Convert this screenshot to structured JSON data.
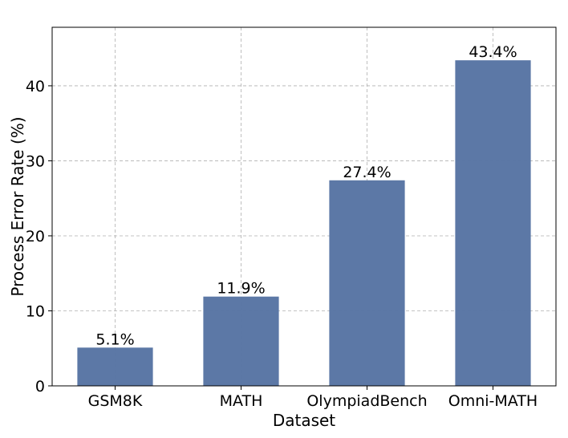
{
  "chart_data": {
    "type": "bar",
    "title": "",
    "xlabel": "Dataset",
    "ylabel": "Process Error Rate (%)",
    "categories": [
      "GSM8K",
      "MATH",
      "OlympiadBench",
      "Omni-MATH"
    ],
    "values": [
      5.1,
      11.9,
      27.4,
      43.4
    ],
    "value_labels": [
      "5.1%",
      "11.9%",
      "27.4%",
      "43.4%"
    ],
    "ylim": [
      0,
      47.8
    ],
    "yticks": [
      0,
      10,
      20,
      30,
      40
    ],
    "ytick_labels": [
      "0",
      "10",
      "20",
      "30",
      "40"
    ],
    "grid": true,
    "bar_color": "#5975a4"
  }
}
